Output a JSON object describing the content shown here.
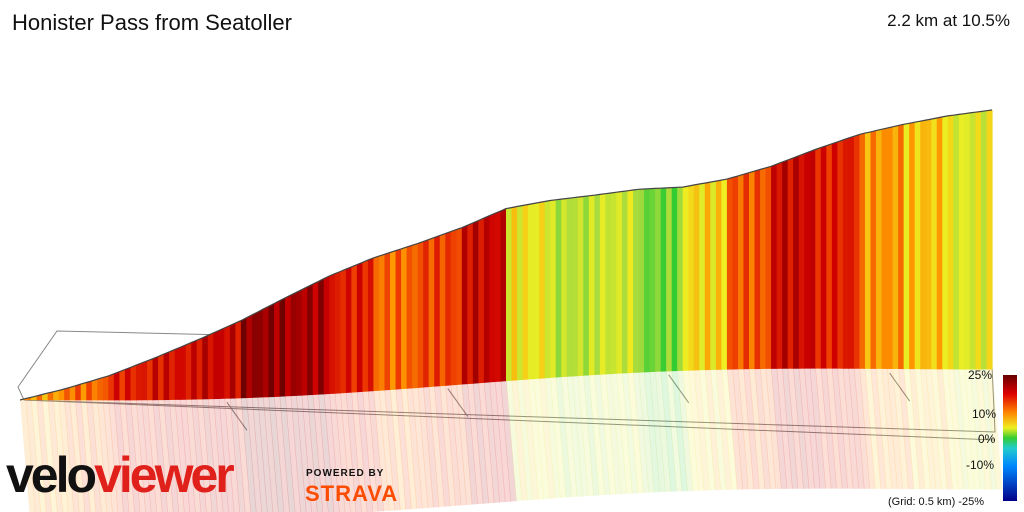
{
  "page": {
    "title": "Honister Pass from Seatoller",
    "summary": "2.2 km at 10.5%",
    "grid_note": "(Grid: 0.5 km)"
  },
  "legend": {
    "ticks": [
      "25%",
      "10%",
      "0%",
      "-10%",
      "-25%"
    ],
    "values": [
      25,
      10,
      0,
      -10,
      -25
    ]
  },
  "branding": {
    "logo_part1": "velo",
    "logo_part2": "viewer",
    "powered_by": "POWERED BY",
    "strava": "STRAVA",
    "logo_red": "#e0201b",
    "strava_orange": "#fc4c02"
  },
  "chart_data": {
    "type": "area",
    "title": "Honister Pass from Seatoller",
    "distance_km": 2.2,
    "avg_gradient_pct": 10.5,
    "grid_km": 0.5,
    "gradient_scale": [
      -25,
      25
    ],
    "x_km": [
      0.0,
      0.1,
      0.2,
      0.3,
      0.4,
      0.5,
      0.6,
      0.7,
      0.8,
      0.9,
      1.0,
      1.1,
      1.2,
      1.3,
      1.4,
      1.5,
      1.6,
      1.7,
      1.8,
      1.9,
      2.0,
      2.1,
      2.2
    ],
    "gradient_pct": [
      12,
      14,
      18,
      19,
      20,
      23,
      22,
      18,
      14,
      16,
      20,
      8,
      5,
      6,
      2,
      9,
      15,
      20,
      18,
      12,
      10,
      7,
      2
    ],
    "palette": {
      "green": "#33cc33",
      "yellow": "#eeee22",
      "orange": "#ee6600",
      "red": "#dd0000",
      "dark_red": "#7a0000"
    }
  }
}
